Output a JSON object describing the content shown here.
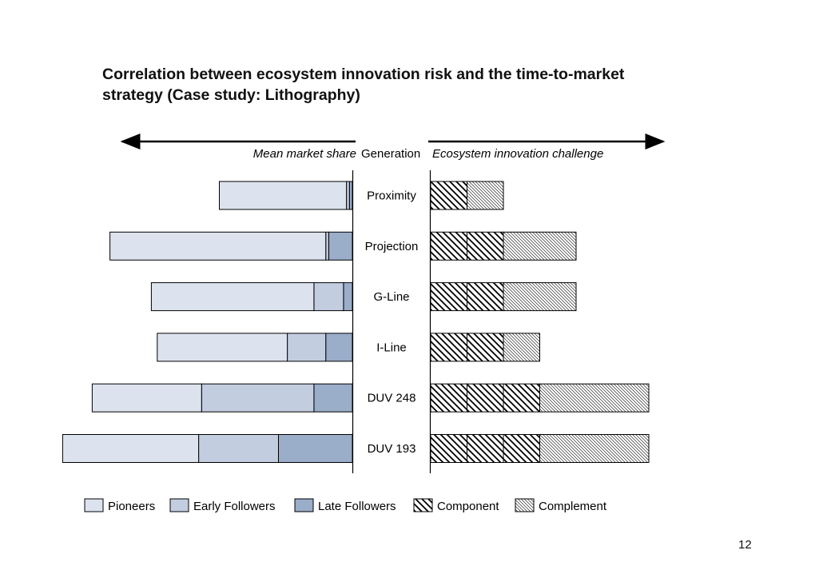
{
  "title": {
    "line1": "Correlation between ecosystem innovation risk and the time-to-market",
    "line2": "strategy (Case study: Lithography)"
  },
  "headers": {
    "left": "Mean market share",
    "center": "Generation",
    "right": "Ecosystem innovation challenge"
  },
  "page_number": "12",
  "colors": {
    "pioneers": "#dce3ee",
    "early_followers": "#c2cde0",
    "late_followers": "#9aadc9",
    "outline": "#000000"
  },
  "chart_data": {
    "type": "bar",
    "orientation": "horizontal",
    "layout": "butterfly",
    "categories": [
      "Proximity",
      "Projection",
      "G-Line",
      "I-Line",
      "DUV 248",
      "DUV 193"
    ],
    "left_chart": {
      "label": "Mean market share",
      "stacking": "stacked",
      "direction": "leftward",
      "xlim": [
        0,
        1
      ],
      "series": [
        {
          "name": "Pioneers",
          "values": [
            0.43,
            0.73,
            0.55,
            0.44,
            0.37,
            0.46
          ]
        },
        {
          "name": "Early Followers",
          "values": [
            0.01,
            0.01,
            0.1,
            0.13,
            0.38,
            0.27
          ]
        },
        {
          "name": "Late Followers",
          "values": [
            0.01,
            0.08,
            0.03,
            0.09,
            0.13,
            0.25
          ]
        }
      ]
    },
    "right_chart": {
      "label": "Ecosystem innovation challenge",
      "stacking": "stacked",
      "direction": "rightward",
      "xlim": [
        0,
        3
      ],
      "series": [
        {
          "name": "Component",
          "values": [
            0.5,
            1.0,
            1.0,
            1.0,
            1.5,
            1.5
          ]
        },
        {
          "name": "Complement",
          "values": [
            0.5,
            1.0,
            1.0,
            0.5,
            1.5,
            1.5
          ]
        }
      ],
      "component_divisions": [
        1,
        2,
        2,
        2,
        3,
        3
      ],
      "complement_divisions": [
        1,
        1,
        1,
        1,
        1,
        1
      ]
    },
    "legend": {
      "placement": "bottom",
      "entries": [
        "Pioneers",
        "Early Followers",
        "Late Followers",
        "Component",
        "Complement"
      ]
    }
  }
}
